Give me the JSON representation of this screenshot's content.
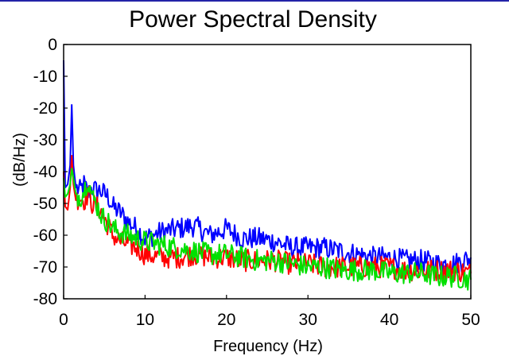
{
  "chart_data": {
    "type": "line",
    "title": "Power Spectral Density",
    "xlabel": "Frequency (Hz)",
    "ylabel": "(dB/Hz)",
    "xlim": [
      0,
      50
    ],
    "ylim": [
      -80,
      0
    ],
    "xticks": [
      0,
      10,
      20,
      30,
      40,
      50
    ],
    "yticks": [
      0,
      -10,
      -20,
      -30,
      -40,
      -50,
      -60,
      -70,
      -80
    ],
    "grid": false,
    "legend": "none",
    "series": [
      {
        "color": "#0000ff",
        "x": [
          0,
          0.2,
          0.5,
          0.8,
          1.0,
          1.2,
          1.5,
          2,
          2.5,
          3,
          3.5,
          4,
          4.5,
          5,
          5.5,
          6,
          7,
          8,
          9,
          10,
          12,
          14,
          16,
          18,
          20,
          22,
          24,
          26,
          28,
          30,
          32,
          34,
          36,
          38,
          40,
          42,
          44,
          46,
          48,
          50
        ],
        "y": [
          -5,
          -45,
          -44,
          -38,
          -19,
          -38,
          -45,
          -46,
          -44,
          -47,
          -45,
          -46,
          -46,
          -47,
          -48,
          -51,
          -53,
          -56,
          -58,
          -61,
          -59,
          -58,
          -57,
          -60,
          -58,
          -61,
          -61,
          -62,
          -64,
          -64,
          -64,
          -65,
          -66,
          -67,
          -67,
          -68,
          -68,
          -69,
          -69,
          -67
        ]
      },
      {
        "color": "#ff0000",
        "x": [
          0,
          0.2,
          0.5,
          0.8,
          1.0,
          1.2,
          1.5,
          2,
          2.5,
          3,
          3.5,
          4,
          4.5,
          5,
          5.5,
          6,
          7,
          8,
          9,
          10,
          12,
          14,
          16,
          18,
          20,
          22,
          24,
          26,
          28,
          30,
          32,
          34,
          36,
          38,
          40,
          42,
          44,
          46,
          48,
          50
        ],
        "y": [
          -40,
          -51,
          -52,
          -45,
          -35,
          -44,
          -49,
          -48,
          -49,
          -47,
          -50,
          -51,
          -52,
          -55,
          -57,
          -60,
          -62,
          -63,
          -64,
          -66,
          -67,
          -67,
          -66,
          -67,
          -67,
          -68,
          -68,
          -68,
          -69,
          -69,
          -70,
          -70,
          -70,
          -70,
          -70,
          -71,
          -71,
          -71,
          -71,
          -72
        ]
      },
      {
        "color": "#00e000",
        "x": [
          0,
          0.2,
          0.5,
          0.8,
          1.0,
          1.2,
          1.5,
          2,
          2.5,
          3,
          3.5,
          4,
          4.5,
          5,
          5.5,
          6,
          7,
          8,
          9,
          10,
          12,
          14,
          16,
          18,
          20,
          22,
          24,
          26,
          28,
          30,
          32,
          34,
          36,
          38,
          40,
          42,
          44,
          46,
          48,
          50
        ],
        "y": [
          -42,
          -48,
          -47,
          -44,
          -39,
          -42,
          -47,
          -48,
          -46,
          -42,
          -48,
          -50,
          -53,
          -55,
          -56,
          -58,
          -59,
          -60,
          -61,
          -62,
          -63,
          -64,
          -65,
          -66,
          -66,
          -67,
          -68,
          -68,
          -69,
          -70,
          -70,
          -71,
          -71,
          -71,
          -72,
          -72,
          -72,
          -73,
          -73,
          -74
        ]
      }
    ]
  }
}
